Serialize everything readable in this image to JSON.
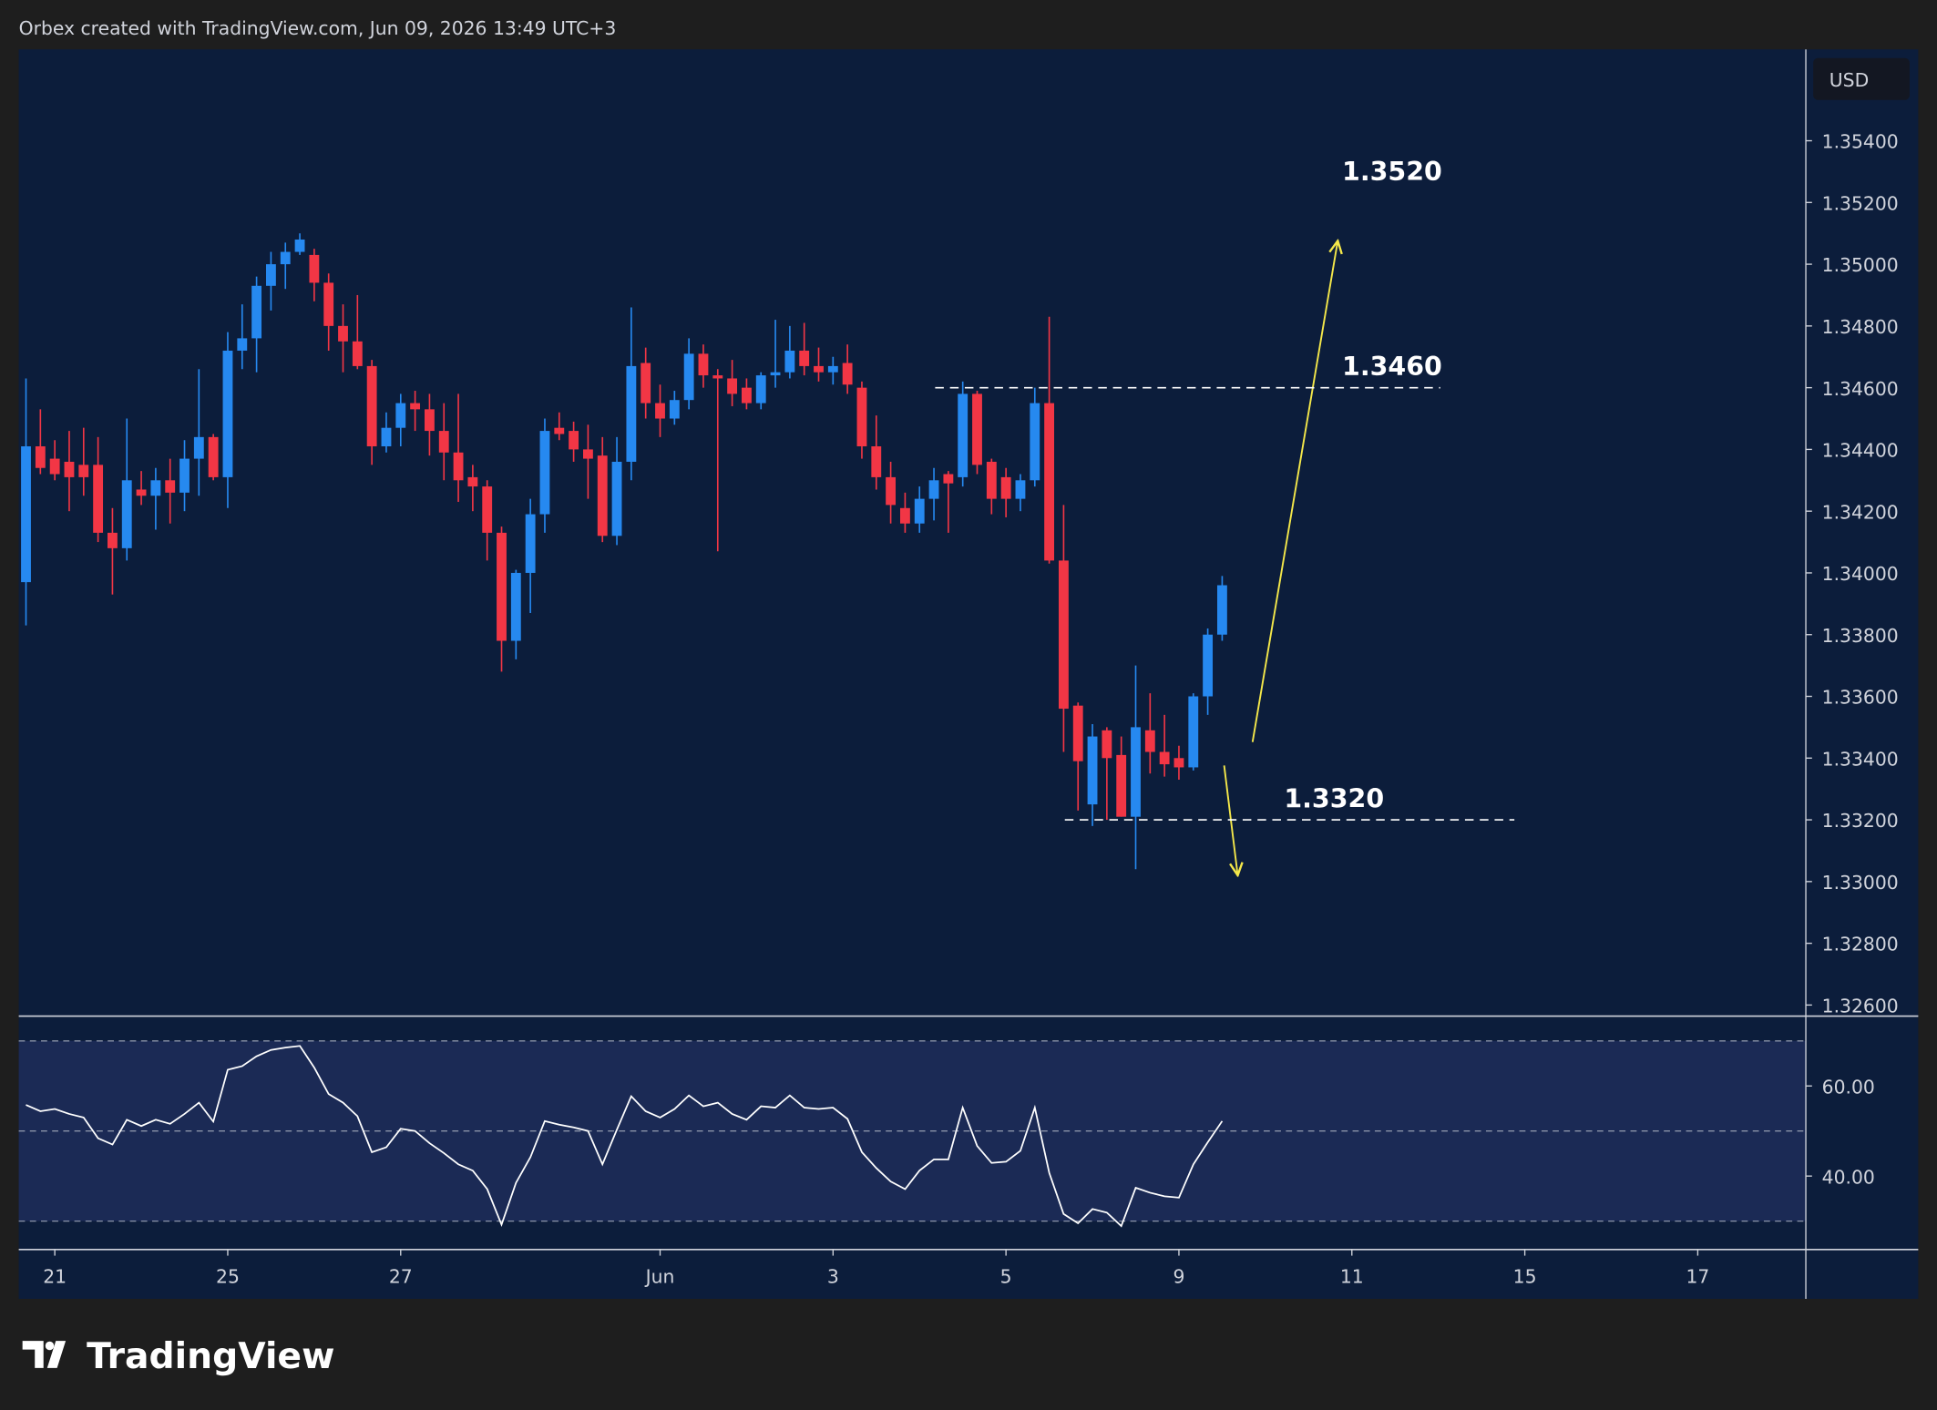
{
  "header": "Orbex created with TradingView.com, Jun 09, 2026 13:49 UTC+3",
  "currency": "USD",
  "brand": "TradingView",
  "chart_data": [
    {
      "type": "candlestick",
      "up_color": "#2689f0",
      "down_color": "#f23645",
      "xlim": [
        -0.5,
        123.5
      ],
      "xticks": [
        {
          "value": 2,
          "label": "21"
        },
        {
          "value": 14,
          "label": "25"
        },
        {
          "value": 26,
          "label": "27"
        },
        {
          "value": 44,
          "label": "Jun"
        },
        {
          "value": 56,
          "label": "3"
        },
        {
          "value": 68,
          "label": "5"
        },
        {
          "value": 80,
          "label": "9"
        },
        {
          "value": 92,
          "label": "11"
        },
        {
          "value": 104,
          "label": "15"
        },
        {
          "value": 116,
          "label": "17"
        }
      ],
      "ylim": [
        1.32564,
        1.35696
      ],
      "yticks": [
        {
          "value": 1.354,
          "label": "1.35400"
        },
        {
          "value": 1.352,
          "label": "1.35200"
        },
        {
          "value": 1.35,
          "label": "1.35000"
        },
        {
          "value": 1.348,
          "label": "1.34800"
        },
        {
          "value": 1.346,
          "label": "1.34600"
        },
        {
          "value": 1.344,
          "label": "1.34400"
        },
        {
          "value": 1.342,
          "label": "1.34200"
        },
        {
          "value": 1.34,
          "label": "1.34000"
        },
        {
          "value": 1.338,
          "label": "1.33800"
        },
        {
          "value": 1.336,
          "label": "1.33600"
        },
        {
          "value": 1.334,
          "label": "1.33400"
        },
        {
          "value": 1.332,
          "label": "1.33200"
        },
        {
          "value": 1.33,
          "label": "1.33000"
        },
        {
          "value": 1.328,
          "label": "1.32800"
        },
        {
          "value": 1.326,
          "label": "1.32600"
        }
      ],
      "levels": [
        {
          "value": 1.346,
          "label": "1.3460"
        },
        {
          "value": 1.332,
          "label": "1.3320"
        }
      ],
      "targets": [
        {
          "value": 1.352,
          "label": "1.3520"
        }
      ],
      "open": [
        1.3397,
        1.3441,
        1.3437,
        1.3436,
        1.3435,
        1.3435,
        1.3413,
        1.3408,
        1.3427,
        1.3425,
        1.343,
        1.3426,
        1.3437,
        1.3444,
        1.3431,
        1.3472,
        1.3476,
        1.3493,
        1.35,
        1.3504,
        1.3503,
        1.3494,
        1.348,
        1.3475,
        1.3467,
        1.3441,
        1.3447,
        1.3455,
        1.3453,
        1.3446,
        1.3439,
        1.3431,
        1.3428,
        1.3413,
        1.3378,
        1.34,
        1.3419,
        1.3447,
        1.3446,
        1.344,
        1.3438,
        1.3412,
        1.3436,
        1.3468,
        1.3455,
        1.345,
        1.3456,
        1.3471,
        1.3464,
        1.3463,
        1.346,
        1.3455,
        1.3464,
        1.3465,
        1.3472,
        1.3467,
        1.3465,
        1.3468,
        1.346,
        1.3441,
        1.3431,
        1.3421,
        1.3416,
        1.3424,
        1.3432,
        1.3431,
        1.3458,
        1.3436,
        1.3431,
        1.3424,
        1.343,
        1.3455,
        1.3404,
        1.3357,
        1.3325,
        1.3349,
        1.3341,
        1.3321,
        1.3349,
        1.3342,
        1.334,
        1.3337,
        1.336,
        1.338
      ],
      "high": [
        1.3463,
        1.3453,
        1.3443,
        1.3446,
        1.3447,
        1.3444,
        1.3421,
        1.345,
        1.3433,
        1.3434,
        1.3437,
        1.3443,
        1.3466,
        1.3445,
        1.3478,
        1.3487,
        1.3496,
        1.3504,
        1.3507,
        1.351,
        1.3505,
        1.3497,
        1.3487,
        1.349,
        1.3469,
        1.3452,
        1.3458,
        1.3459,
        1.3458,
        1.3455,
        1.3458,
        1.3435,
        1.343,
        1.3415,
        1.3401,
        1.3424,
        1.345,
        1.3452,
        1.3449,
        1.3448,
        1.3444,
        1.3444,
        1.3486,
        1.3473,
        1.3461,
        1.3459,
        1.3476,
        1.3474,
        1.3466,
        1.3469,
        1.3463,
        1.3465,
        1.3482,
        1.348,
        1.3481,
        1.3473,
        1.347,
        1.3474,
        1.3462,
        1.3451,
        1.3436,
        1.3426,
        1.3428,
        1.3434,
        1.3433,
        1.3462,
        1.3459,
        1.3437,
        1.3434,
        1.3432,
        1.346,
        1.3483,
        1.3422,
        1.3358,
        1.3351,
        1.335,
        1.3347,
        1.337,
        1.3361,
        1.3354,
        1.3344,
        1.3361,
        1.3382,
        1.3399
      ],
      "low": [
        1.3383,
        1.3432,
        1.343,
        1.342,
        1.3425,
        1.341,
        1.3393,
        1.3404,
        1.3422,
        1.3414,
        1.3416,
        1.342,
        1.3425,
        1.343,
        1.3421,
        1.3466,
        1.3465,
        1.3485,
        1.3492,
        1.3503,
        1.3488,
        1.3472,
        1.3465,
        1.3466,
        1.3435,
        1.3439,
        1.3441,
        1.3446,
        1.3438,
        1.343,
        1.3423,
        1.342,
        1.3404,
        1.3368,
        1.3372,
        1.3387,
        1.3413,
        1.3443,
        1.3436,
        1.3424,
        1.341,
        1.3409,
        1.343,
        1.345,
        1.3444,
        1.3448,
        1.3453,
        1.346,
        1.3407,
        1.3454,
        1.3453,
        1.3453,
        1.346,
        1.3463,
        1.3464,
        1.3462,
        1.3461,
        1.3458,
        1.3437,
        1.3427,
        1.3416,
        1.3413,
        1.3413,
        1.3417,
        1.3413,
        1.3428,
        1.3432,
        1.3419,
        1.3418,
        1.342,
        1.3428,
        1.3403,
        1.3342,
        1.3323,
        1.3318,
        1.332,
        1.3321,
        1.3304,
        1.3335,
        1.3334,
        1.3333,
        1.3336,
        1.3354,
        1.3378
      ],
      "close": [
        1.3441,
        1.3434,
        1.3432,
        1.3431,
        1.3431,
        1.3413,
        1.3408,
        1.343,
        1.3425,
        1.343,
        1.3426,
        1.3437,
        1.3444,
        1.3431,
        1.3472,
        1.3476,
        1.3493,
        1.35,
        1.3504,
        1.3508,
        1.3494,
        1.348,
        1.3475,
        1.3467,
        1.3441,
        1.3447,
        1.3455,
        1.3453,
        1.3446,
        1.3439,
        1.343,
        1.3428,
        1.3413,
        1.3378,
        1.34,
        1.3419,
        1.3446,
        1.3445,
        1.344,
        1.3437,
        1.3412,
        1.3436,
        1.3467,
        1.3455,
        1.345,
        1.3456,
        1.3471,
        1.3464,
        1.3463,
        1.3458,
        1.3455,
        1.3464,
        1.3465,
        1.3472,
        1.3467,
        1.3465,
        1.3467,
        1.3461,
        1.3441,
        1.3431,
        1.3422,
        1.3416,
        1.3424,
        1.343,
        1.3429,
        1.3458,
        1.3435,
        1.3424,
        1.3424,
        1.343,
        1.3455,
        1.3404,
        1.3356,
        1.3339,
        1.3347,
        1.334,
        1.3321,
        1.335,
        1.3342,
        1.3338,
        1.3337,
        1.336,
        1.338,
        1.3396
      ]
    },
    {
      "type": "line",
      "color": "#ffffff",
      "ylim": [
        23.7,
        75.5
      ],
      "yticks": [
        {
          "value": 60,
          "label": "60.00"
        },
        {
          "value": 40,
          "label": "40.00"
        }
      ],
      "levels": [
        70,
        50,
        30
      ],
      "values": [
        55.8,
        54.4,
        54.9,
        53.8,
        53.0,
        48.4,
        47.0,
        52.5,
        51.1,
        52.5,
        51.6,
        53.8,
        56.3,
        52.1,
        63.6,
        64.4,
        66.6,
        68.0,
        68.5,
        68.9,
        64.1,
        58.2,
        56.3,
        53.3,
        45.3,
        46.4,
        50.5,
        50.0,
        47.3,
        45.1,
        42.6,
        41.2,
        37.1,
        29.2,
        38.5,
        44.2,
        52.2,
        51.4,
        50.8,
        50.0,
        42.6,
        50.3,
        57.7,
        54.4,
        53.0,
        54.9,
        57.9,
        55.5,
        56.3,
        53.8,
        52.5,
        55.5,
        55.2,
        57.9,
        55.2,
        54.9,
        55.2,
        52.7,
        45.3,
        41.8,
        38.8,
        37.1,
        41.2,
        43.7,
        43.7,
        55.2,
        46.7,
        42.9,
        43.2,
        45.6,
        55.2,
        40.7,
        31.6,
        29.5,
        32.7,
        31.9,
        28.9,
        37.4,
        36.3,
        35.5,
        35.2,
        42.6,
        47.5,
        52.2
      ]
    }
  ]
}
